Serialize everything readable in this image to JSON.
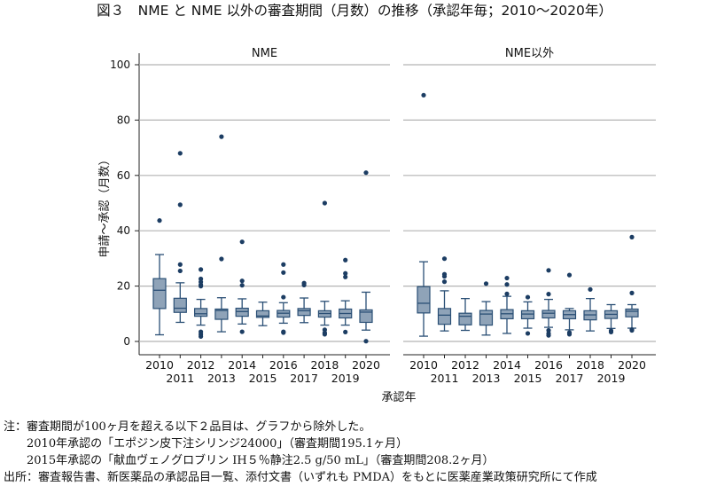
{
  "title": "図３　NME と NME 以外の審査期間（月数）の推移（承認年毎；2010～2020年）",
  "notes": [
    "注：審査期間が100ヶ月を超える以下２品目は、グラフから除外した。",
    "　　2010年承認の「エポジン皮下注シリンジ24000」（審査期間195.1ヶ月）",
    "　　2015年承認の「献血ヴェノグロブリン IH５％静注2.5 g/50 mL」（審査期間208.2ヶ月）",
    "出所：審査報告書、新医薬品の承認品目一覧、添付文書（いずれも PMDA）をもとに医薬産業政策研究所にて作成"
  ],
  "chart_data": {
    "type": "box",
    "xlabel": "承認年",
    "ylabel": "申請～承認（月数）",
    "ylim": [
      0,
      100
    ],
    "yticks": [
      "0",
      "20",
      "40",
      "60",
      "80",
      "100"
    ],
    "grid": true,
    "colors": {
      "box_fill": "#8fa3b8",
      "stroke": "#2a4f75",
      "outlier": "#1c3d63",
      "grid": "#b4b4b4"
    },
    "categories": [
      "2010",
      "2011",
      "2012",
      "2013",
      "2014",
      "2015",
      "2016",
      "2017",
      "2018",
      "2019",
      "2020"
    ],
    "panels": [
      {
        "name": "NME",
        "boxes": [
          {
            "low": 2.4,
            "q1": 11.9,
            "median": 18.5,
            "q3": 22.7,
            "high": 31.4,
            "outliers": [
              43.7
            ]
          },
          {
            "low": 6.9,
            "q1": 10.5,
            "median": 12.0,
            "q3": 15.6,
            "high": 21.2,
            "outliers": [
              25.5,
              27.8,
              49.4,
              68.0
            ]
          },
          {
            "low": 5.9,
            "q1": 9.1,
            "median": 10.0,
            "q3": 11.9,
            "high": 15.2,
            "outliers": [
              1.8,
              2.6,
              3.5,
              20.0,
              20.5,
              21.5,
              22.6,
              26.0
            ]
          },
          {
            "low": 3.5,
            "q1": 8.0,
            "median": 11.2,
            "q3": 11.7,
            "high": 15.8,
            "outliers": [
              29.8,
              74.0
            ]
          },
          {
            "low": 6.3,
            "q1": 9.1,
            "median": 10.8,
            "q3": 12.0,
            "high": 15.4,
            "outliers": [
              3.5,
              20.3,
              21.9,
              36.0
            ]
          },
          {
            "low": 5.7,
            "q1": 8.7,
            "median": 9.2,
            "q3": 11.1,
            "high": 14.2,
            "outliers": []
          },
          {
            "low": 6.6,
            "q1": 8.8,
            "median": 10.2,
            "q3": 11.2,
            "high": 14.0,
            "outliers": [
              3.2,
              3.5,
              16.0,
              24.9,
              27.8
            ]
          },
          {
            "low": 6.8,
            "q1": 9.4,
            "median": 11.1,
            "q3": 11.9,
            "high": 15.7,
            "outliers": [
              20.4,
              21.1
            ]
          },
          {
            "low": 5.9,
            "q1": 8.8,
            "median": 10.1,
            "q3": 11.1,
            "high": 14.5,
            "outliers": [
              2.6,
              3.1,
              4.2,
              50.0
            ]
          },
          {
            "low": 5.9,
            "q1": 8.5,
            "median": 10.1,
            "q3": 11.7,
            "high": 14.7,
            "outliers": [
              3.4,
              23.3,
              24.6,
              29.4
            ]
          },
          {
            "low": 4.1,
            "q1": 6.9,
            "median": 10.6,
            "q3": 11.4,
            "high": 17.8,
            "outliers": [
              0.1,
              61.0
            ]
          }
        ]
      },
      {
        "name": "NME以外",
        "boxes": [
          {
            "low": 1.9,
            "q1": 10.3,
            "median": 13.8,
            "q3": 19.8,
            "high": 28.8,
            "outliers": [
              89.0
            ]
          },
          {
            "low": 3.8,
            "q1": 6.2,
            "median": 9.5,
            "q3": 11.9,
            "high": 18.3,
            "outliers": [
              21.6,
              23.5,
              24.3,
              29.9
            ]
          },
          {
            "low": 4.0,
            "q1": 6.0,
            "median": 9.1,
            "q3": 10.2,
            "high": 15.5,
            "outliers": []
          },
          {
            "low": 2.3,
            "q1": 5.9,
            "median": 9.9,
            "q3": 11.2,
            "high": 14.4,
            "outliers": [
              20.9
            ]
          },
          {
            "low": 2.9,
            "q1": 8.2,
            "median": 10.0,
            "q3": 11.5,
            "high": 16.3,
            "outliers": [
              17.2,
              20.6,
              22.9
            ]
          },
          {
            "low": 4.8,
            "q1": 8.2,
            "median": 9.9,
            "q3": 11.1,
            "high": 14.3,
            "outliers": [
              2.9,
              16.0
            ]
          },
          {
            "low": 5.1,
            "q1": 8.5,
            "median": 10.2,
            "q3": 11.2,
            "high": 15.2,
            "outliers": [
              2.2,
              2.9,
              4.0,
              17.1,
              25.7
            ]
          },
          {
            "low": 4.2,
            "q1": 8.2,
            "median": 9.7,
            "q3": 11.1,
            "high": 11.9,
            "outliers": [
              2.6,
              3.2,
              24.0
            ]
          },
          {
            "low": 3.8,
            "q1": 7.8,
            "median": 9.6,
            "q3": 11.1,
            "high": 15.5,
            "outliers": [
              18.8
            ]
          },
          {
            "low": 4.7,
            "q1": 8.3,
            "median": 9.8,
            "q3": 11.1,
            "high": 13.3,
            "outliers": [
              3.4,
              3.9
            ]
          },
          {
            "low": 4.8,
            "q1": 8.9,
            "median": 10.9,
            "q3": 11.7,
            "high": 13.3,
            "outliers": [
              4.0,
              4.3,
              17.5,
              37.7
            ]
          }
        ]
      }
    ]
  }
}
